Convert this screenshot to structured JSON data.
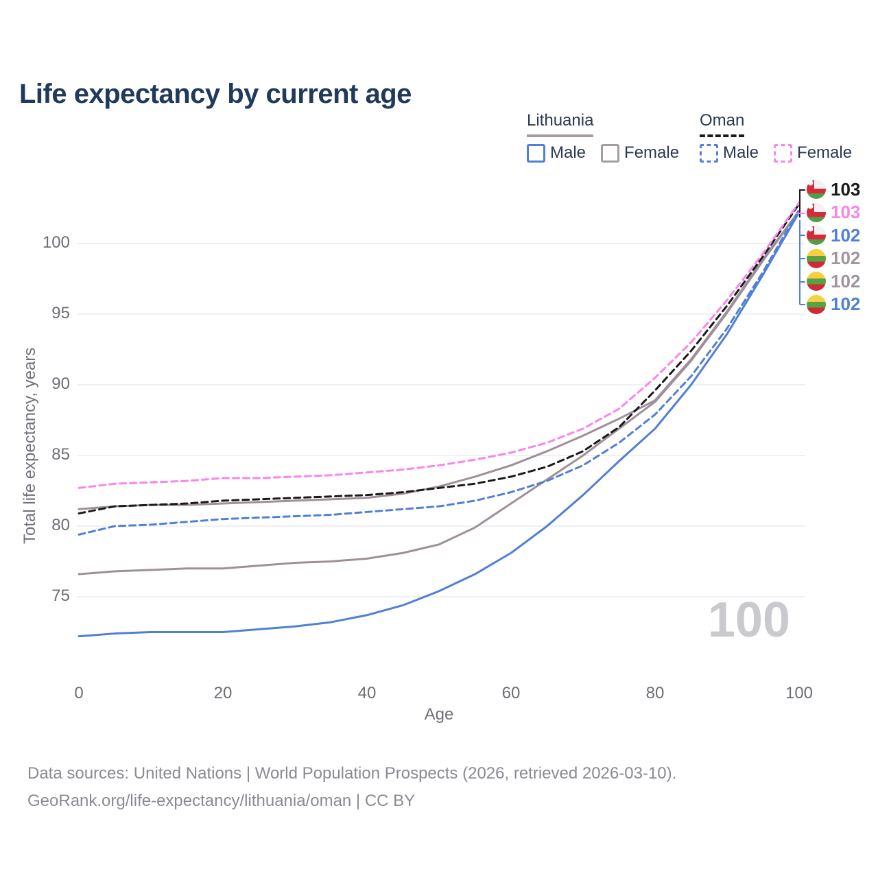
{
  "title": "Life expectancy by current age",
  "legend": {
    "lithuania": {
      "label": "Lithuania",
      "male_label": "Male",
      "female_label": "Female"
    },
    "oman": {
      "label": "Oman",
      "male_label": "Male",
      "female_label": "Female"
    }
  },
  "watermark_age": "100",
  "footer": {
    "line1": "Data sources: United Nations | World Population Prospects (2026, retrieved 2026-03-10).",
    "line2": "GeoRank.org/life-expectancy/lithuania/oman | CC BY"
  },
  "colors": {
    "male_line": "#5080D5",
    "lithuania_female_line": "#9E8F98",
    "oman_female_line": "#F985EC",
    "oman_total_line": "#1A1A1A",
    "gridline": "#ECECF0",
    "title_text": "#203A5C",
    "axis_text": "#6D6D76",
    "watermark_text": "#C9C9CE"
  },
  "chart_data": {
    "type": "line",
    "title": "Life expectancy by current age",
    "xlabel": "Age",
    "ylabel": "Total life expectancy, years",
    "xlim": [
      0,
      100
    ],
    "ylim": [
      69.5,
      104
    ],
    "xticks": [
      0,
      20,
      40,
      60,
      80,
      100
    ],
    "yticks": [
      75,
      80,
      85,
      90,
      95,
      100
    ],
    "grid": "horizontal-only",
    "legend_position": "top-right",
    "x": [
      0,
      5,
      10,
      15,
      20,
      25,
      30,
      35,
      40,
      45,
      50,
      55,
      60,
      65,
      70,
      75,
      80,
      85,
      90,
      95,
      100
    ],
    "series": [
      {
        "id": "lithuania-male",
        "name": "Lithuania Male",
        "country": "Lithuania",
        "sex": "Male",
        "color": "#5080D5",
        "dash": "solid",
        "values": [
          72.2,
          72.4,
          72.5,
          72.5,
          72.5,
          72.7,
          72.9,
          73.2,
          73.7,
          74.4,
          75.4,
          76.6,
          78.1,
          80.0,
          82.2,
          84.6,
          86.9,
          90.0,
          93.6,
          97.8,
          102.2
        ]
      },
      {
        "id": "lithuania-total",
        "name": "Lithuania Both sexes",
        "country": "Lithuania",
        "sex": "Total",
        "color": "#9E8F98",
        "dash": "solid",
        "values": [
          76.6,
          76.8,
          76.9,
          77.0,
          77.0,
          77.2,
          77.4,
          77.5,
          77.7,
          78.1,
          78.7,
          79.9,
          81.6,
          83.3,
          85.0,
          86.9,
          88.8,
          91.7,
          95.1,
          98.8,
          102.3
        ]
      },
      {
        "id": "lithuania-female",
        "name": "Lithuania Female",
        "country": "Lithuania",
        "sex": "Female",
        "color": "#9E8F98",
        "dash": "solid",
        "values": [
          81.2,
          81.4,
          81.5,
          81.5,
          81.6,
          81.7,
          81.8,
          81.9,
          82.0,
          82.3,
          82.8,
          83.5,
          84.3,
          85.3,
          86.4,
          87.6,
          88.9,
          91.8,
          95.2,
          98.9,
          102.3
        ]
      },
      {
        "id": "oman-male",
        "name": "Oman Male",
        "country": "Oman",
        "sex": "Male",
        "color": "#5080D5",
        "dash": "dashed",
        "values": [
          79.4,
          80.0,
          80.1,
          80.3,
          80.5,
          80.6,
          80.7,
          80.8,
          81.0,
          81.2,
          81.4,
          81.8,
          82.4,
          83.2,
          84.3,
          85.9,
          87.9,
          90.6,
          94.0,
          98.0,
          102.4
        ]
      },
      {
        "id": "oman-total",
        "name": "Oman Both sexes",
        "country": "Oman",
        "sex": "Total",
        "color": "#1A1A1A",
        "dash": "dashed",
        "values": [
          80.9,
          81.4,
          81.5,
          81.6,
          81.8,
          81.9,
          82.0,
          82.1,
          82.2,
          82.4,
          82.7,
          83.0,
          83.5,
          84.2,
          85.3,
          87.0,
          89.6,
          92.4,
          95.6,
          99.1,
          102.8
        ]
      },
      {
        "id": "oman-female",
        "name": "Oman Female",
        "country": "Oman",
        "sex": "Female",
        "color": "#F985EC",
        "dash": "dashed",
        "values": [
          82.7,
          83.0,
          83.1,
          83.2,
          83.4,
          83.4,
          83.5,
          83.6,
          83.8,
          84.0,
          84.3,
          84.7,
          85.2,
          85.9,
          86.9,
          88.3,
          90.5,
          93.0,
          96.0,
          99.3,
          102.9
        ]
      }
    ],
    "end_labels": [
      {
        "value": "103",
        "flag": "oman",
        "color": "#1A1A1A"
      },
      {
        "value": "103",
        "flag": "oman",
        "color": "#F985EC"
      },
      {
        "value": "102",
        "flag": "oman",
        "color": "#5080D5"
      },
      {
        "value": "102",
        "flag": "lithuania",
        "color": "#A0949D"
      },
      {
        "value": "102",
        "flag": "lithuania",
        "color": "#A0949D"
      },
      {
        "value": "102",
        "flag": "lithuania",
        "color": "#5080D5"
      }
    ]
  }
}
